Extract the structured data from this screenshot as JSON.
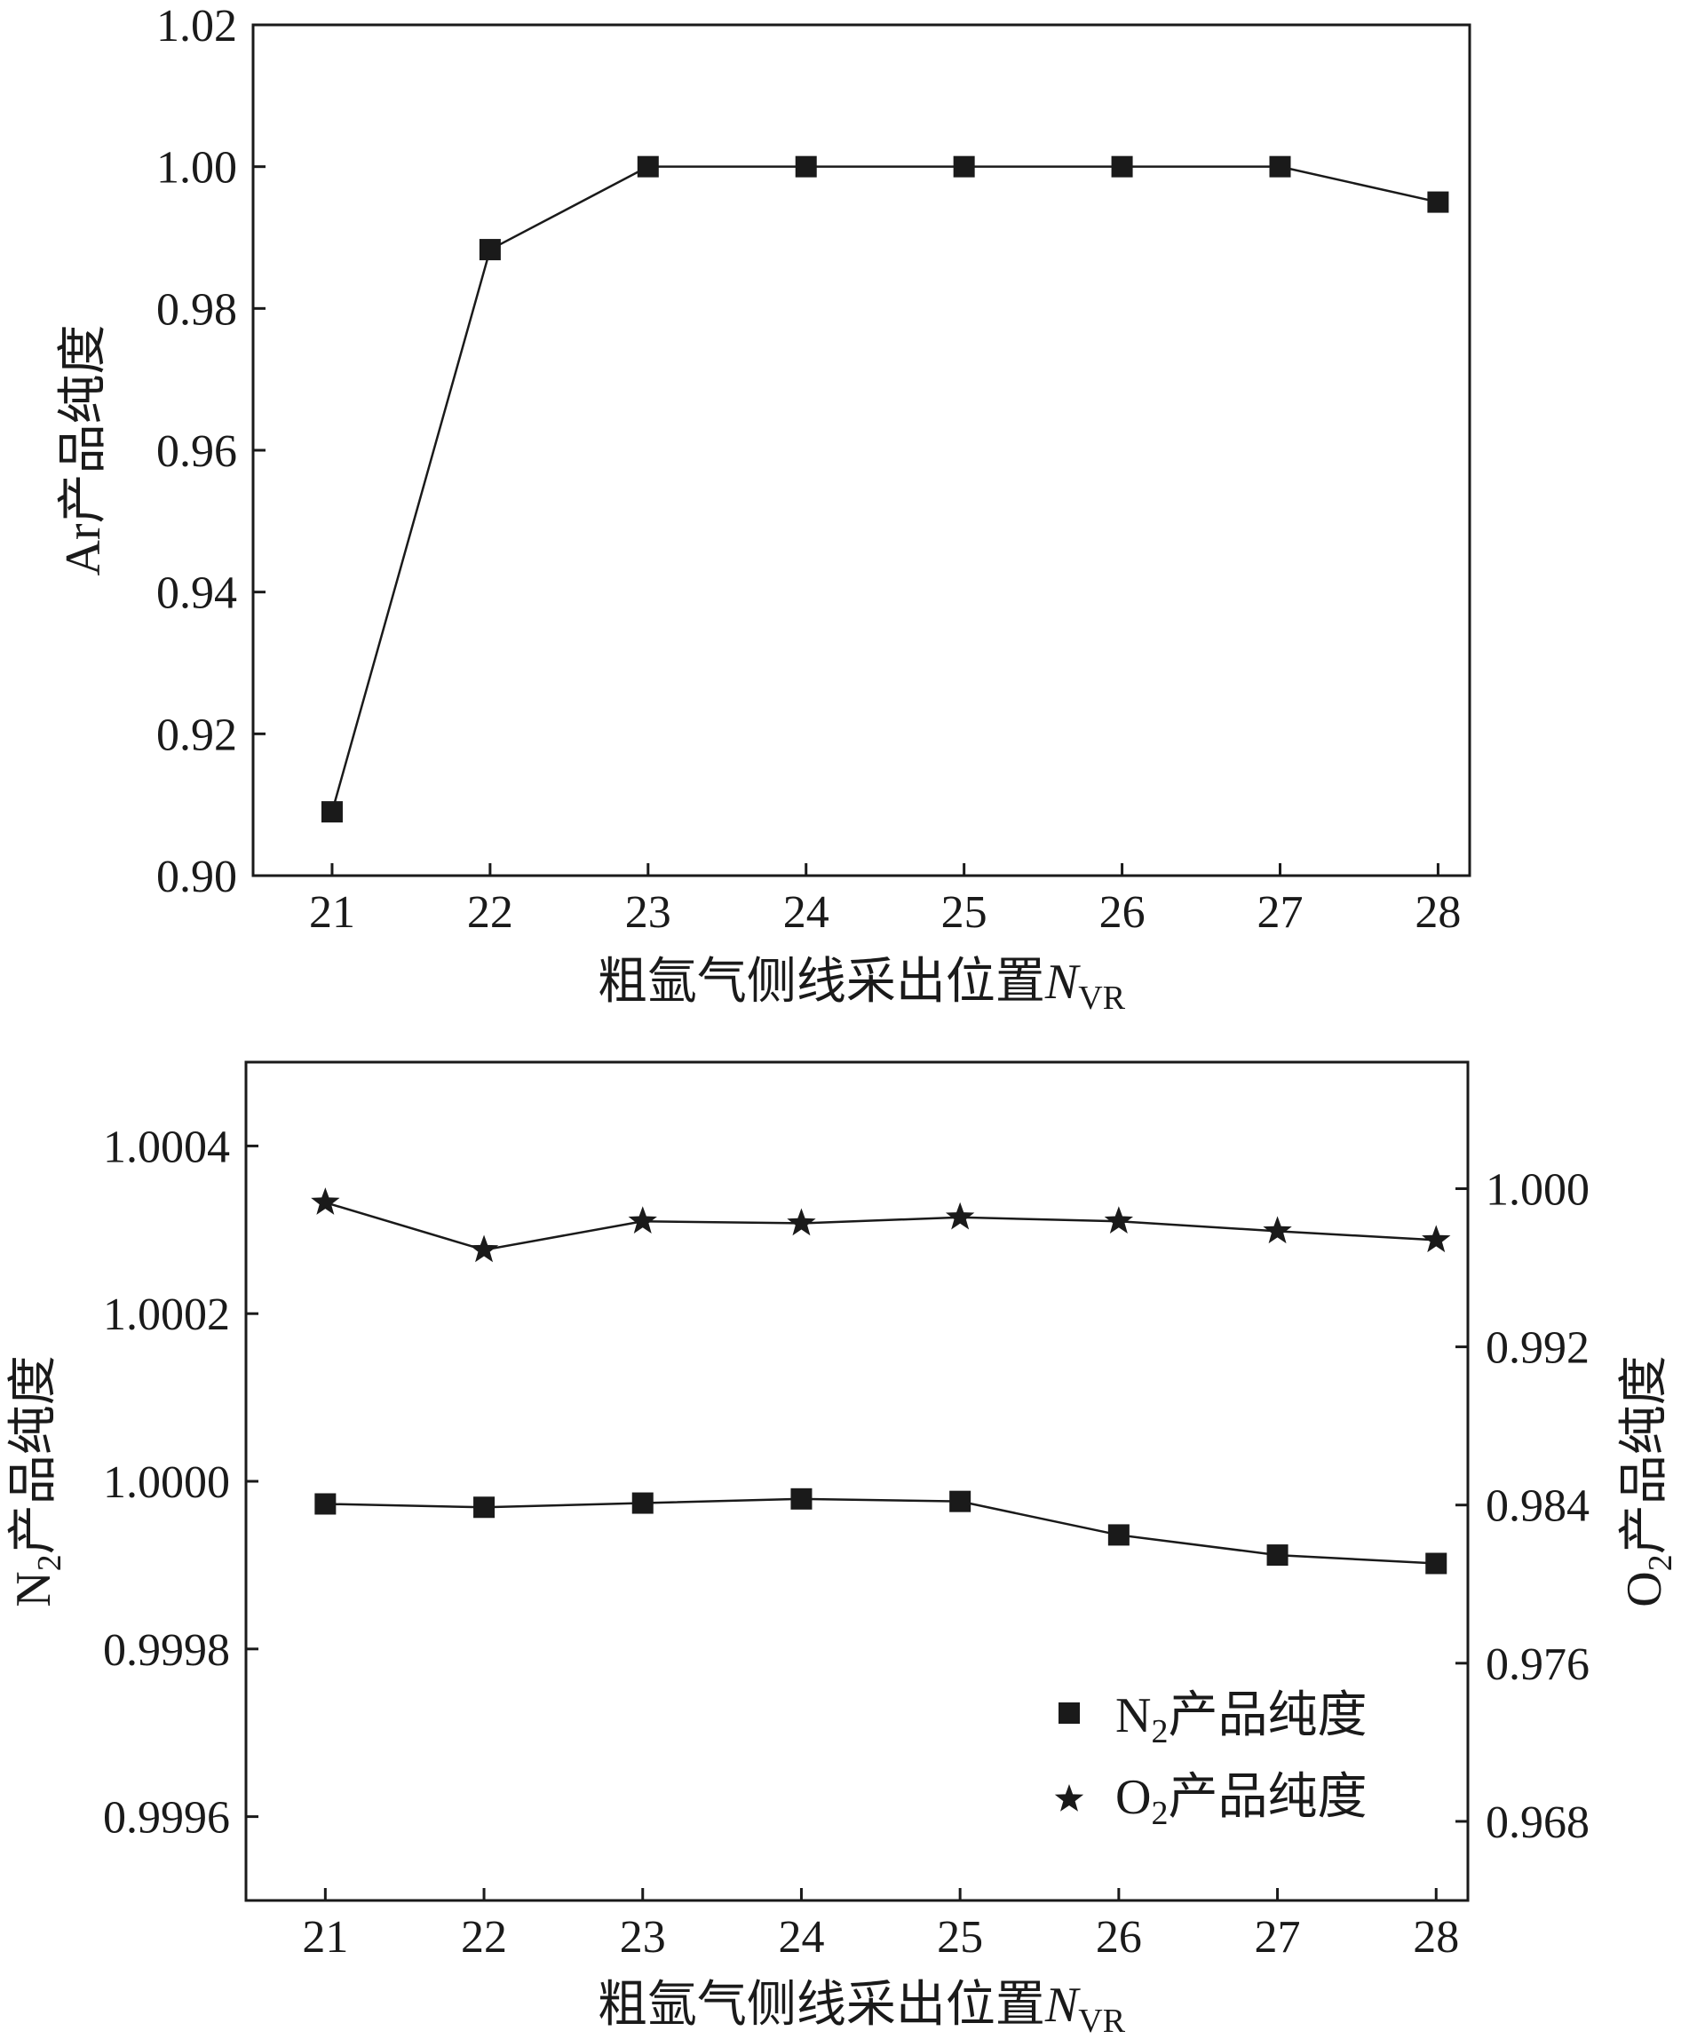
{
  "chart_data": [
    {
      "type": "line",
      "x": [
        21,
        22,
        23,
        24,
        25,
        26,
        27,
        28
      ],
      "xlim": [
        20.5,
        28.2
      ],
      "xticks": [
        "21",
        "22",
        "23",
        "24",
        "25",
        "26",
        "27",
        "28"
      ],
      "xlabel": {
        "main": "粗氩气侧线采出位置",
        "var": "N",
        "sub": "VR"
      },
      "ylabel": {
        "main": "Ar产品纯度"
      },
      "ylim": [
        0.9,
        1.02
      ],
      "yticks": [
        "0.90",
        "0.92",
        "0.94",
        "0.96",
        "0.98",
        "1.00",
        "1.02"
      ],
      "grid": false,
      "series": [
        {
          "marker": "square",
          "axis": "left",
          "values": [
            0.909,
            0.9883,
            1.0,
            1.0,
            1.0,
            1.0,
            1.0,
            0.995
          ]
        }
      ]
    },
    {
      "type": "line",
      "x": [
        21,
        22,
        23,
        24,
        25,
        26,
        27,
        28
      ],
      "xlim": [
        20.5,
        28.2
      ],
      "xticks": [
        "21",
        "22",
        "23",
        "24",
        "25",
        "26",
        "27",
        "28"
      ],
      "xlabel": {
        "main": "粗氩气侧线采出位置",
        "var": "N",
        "sub": "VR"
      },
      "ylabel_left": {
        "pre": "N",
        "sub": "2",
        "main": "产品纯度"
      },
      "ylabel_right": {
        "pre": "O",
        "sub": "2",
        "main": "产品纯度"
      },
      "ylim_left": [
        0.9995,
        1.0005
      ],
      "ylim_right": [
        0.964,
        1.0064
      ],
      "yticks_left": [
        "0.9996",
        "0.9998",
        "1.0000",
        "1.0002",
        "1.0004"
      ],
      "yticks_right": [
        "0.968",
        "0.976",
        "0.984",
        "0.992",
        "1.000"
      ],
      "grid": false,
      "legend_position": "bottom-right",
      "series": [
        {
          "name": {
            "pre": "N",
            "sub": "2",
            "main": "产品纯度"
          },
          "marker": "square",
          "axis": "left",
          "values": [
            0.999973,
            0.999969,
            0.999974,
            0.999979,
            0.999976,
            0.999936,
            0.999912,
            0.999902
          ]
        },
        {
          "name": {
            "pre": "O",
            "sub": "2",
            "main": "产品纯度"
          },
          "marker": "star",
          "axis": "right",
          "values": [
            0.9993,
            0.9969,
            0.99835,
            0.99825,
            0.99855,
            0.99835,
            0.99785,
            0.9974
          ]
        }
      ]
    }
  ]
}
